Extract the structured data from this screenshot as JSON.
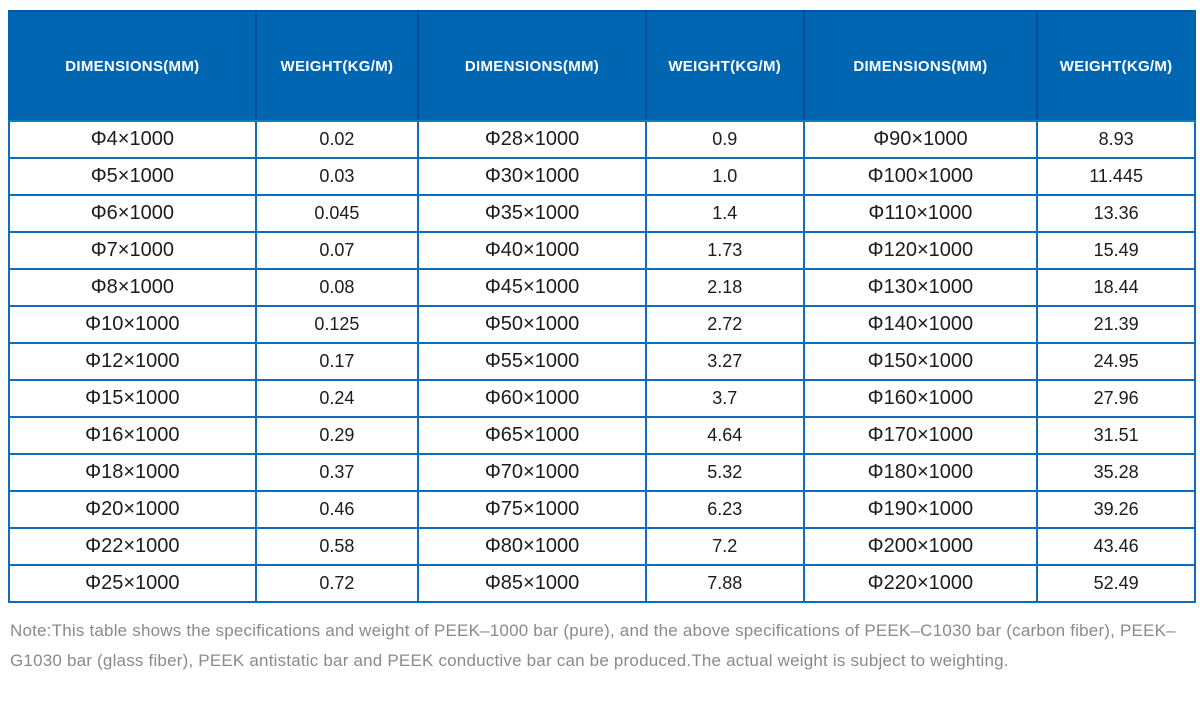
{
  "table": {
    "headers": [
      "DIMENSIONS(MM)",
      "WEIGHT(KG/M)",
      "DIMENSIONS(MM)",
      "WEIGHT(KG/M)",
      "DIMENSIONS(MM)",
      "WEIGHT(KG/M)"
    ],
    "rows": [
      [
        "Φ4×1000",
        "0.02",
        "Φ28×1000",
        "0.9",
        "Φ90×1000",
        "8.93"
      ],
      [
        "Φ5×1000",
        "0.03",
        "Φ30×1000",
        "1.0",
        "Φ100×1000",
        "11.445"
      ],
      [
        "Φ6×1000",
        "0.045",
        "Φ35×1000",
        "1.4",
        "Φ110×1000",
        "13.36"
      ],
      [
        "Φ7×1000",
        "0.07",
        "Φ40×1000",
        "1.73",
        "Φ120×1000",
        "15.49"
      ],
      [
        "Φ8×1000",
        "0.08",
        "Φ45×1000",
        "2.18",
        "Φ130×1000",
        "18.44"
      ],
      [
        "Φ10×1000",
        "0.125",
        "Φ50×1000",
        "2.72",
        "Φ140×1000",
        "21.39"
      ],
      [
        "Φ12×1000",
        "0.17",
        "Φ55×1000",
        "3.27",
        "Φ150×1000",
        "24.95"
      ],
      [
        "Φ15×1000",
        "0.24",
        "Φ60×1000",
        "3.7",
        "Φ160×1000",
        "27.96"
      ],
      [
        "Φ16×1000",
        "0.29",
        "Φ65×1000",
        "4.64",
        "Φ170×1000",
        "31.51"
      ],
      [
        "Φ18×1000",
        "0.37",
        "Φ70×1000",
        "5.32",
        "Φ180×1000",
        "35.28"
      ],
      [
        "Φ20×1000",
        "0.46",
        "Φ75×1000",
        "6.23",
        "Φ190×1000",
        "39.26"
      ],
      [
        "Φ22×1000",
        "0.58",
        "Φ80×1000",
        "7.2",
        "Φ200×1000",
        "43.46"
      ],
      [
        "Φ25×1000",
        "0.72",
        "Φ85×1000",
        "7.88",
        "Φ220×1000",
        "52.49"
      ]
    ]
  },
  "note": {
    "text": "Note:This table shows the specifications and weight of PEEK–1000 bar (pure), and the above specifications of PEEK–C1030 bar (carbon fiber), PEEK–G1030 bar (glass fiber), PEEK antistatic bar and PEEK conductive bar can be produced.The actual weight is subject to weighting."
  },
  "colors": {
    "header_bg": "#0066b2",
    "header_divider": "#004d9e",
    "grid_border": "#0d6cbe",
    "outer_border": "#0057a8",
    "cell_text": "#1c1c1c",
    "note_text": "#8a8a8a"
  }
}
